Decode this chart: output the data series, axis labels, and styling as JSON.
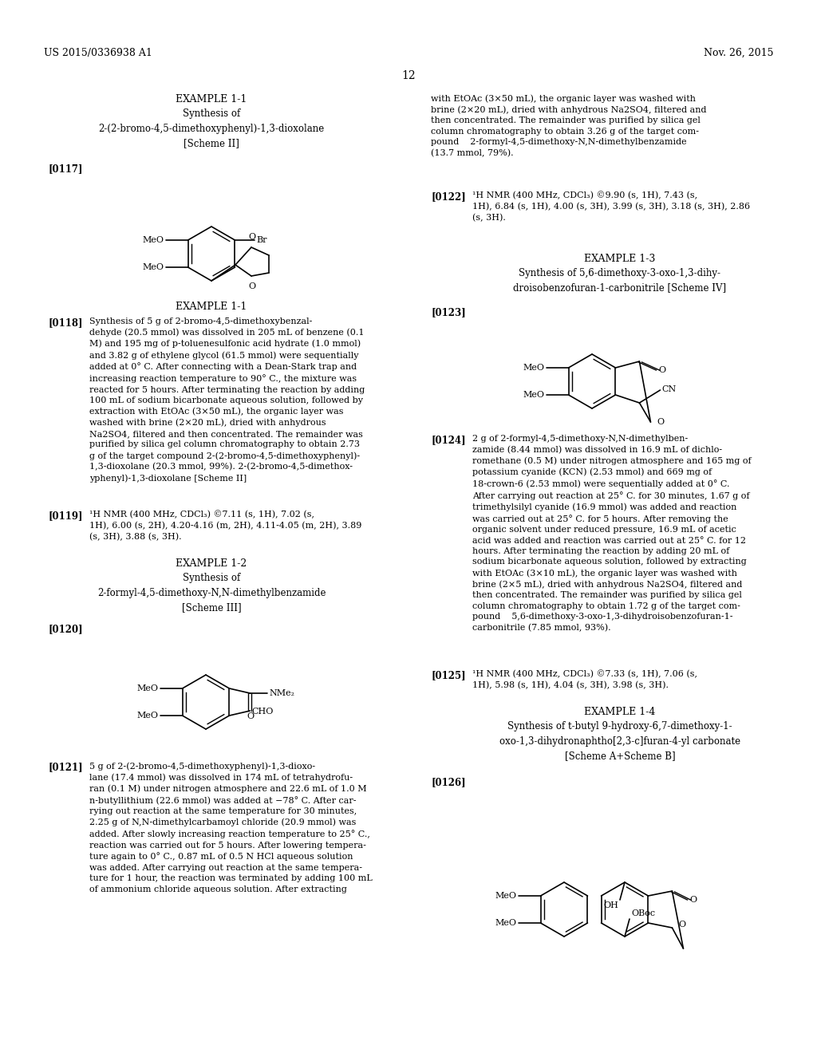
{
  "background_color": "#ffffff",
  "header_left": "US 2015/0336938 A1",
  "header_right": "Nov. 26, 2015",
  "page_number": "12"
}
